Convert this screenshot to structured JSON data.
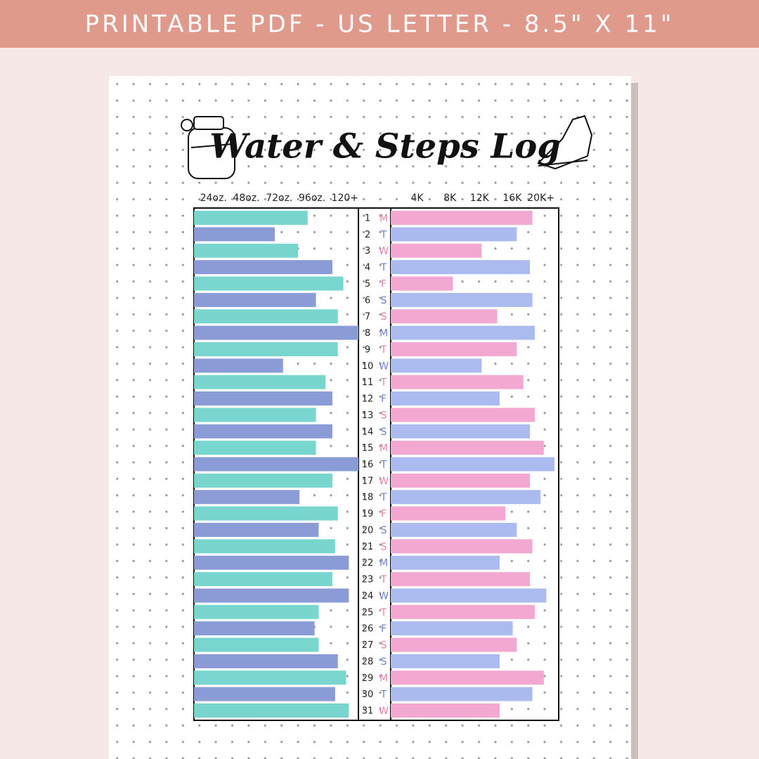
{
  "banner": "PRINTABLE PDF - US LETTER - 8.5\" X 11\"",
  "title": "Water & Steps Log",
  "chart_data": [
    {
      "type": "bar",
      "orientation": "horizontal",
      "categories": [
        "1",
        "2",
        "3",
        "4",
        "5",
        "6",
        "7",
        "8",
        "9",
        "10",
        "11",
        "12",
        "13",
        "14",
        "15",
        "16",
        "17",
        "18",
        "19",
        "20",
        "21",
        "22",
        "23",
        "24",
        "25",
        "26",
        "27",
        "28",
        "29",
        "30",
        "31"
      ],
      "weekdays": [
        "M",
        "T",
        "W",
        "T",
        "F",
        "S",
        "S",
        "M",
        "T",
        "W",
        "T",
        "F",
        "S",
        "S",
        "M",
        "T",
        "W",
        "T",
        "F",
        "S",
        "S",
        "M",
        "T",
        "W",
        "T",
        "F",
        "S",
        "S",
        "M",
        "T",
        "W"
      ],
      "weekday_colors": [
        "#e27fb4",
        "#6b7fc4"
      ],
      "values": [
        83,
        59,
        76,
        101,
        109,
        89,
        105,
        120,
        105,
        65,
        96,
        101,
        89,
        101,
        89,
        120,
        101,
        77,
        105,
        91,
        103,
        113,
        101,
        113,
        91,
        88,
        91,
        105,
        111,
        103,
        113
      ],
      "colors": [
        "#78d6cf",
        "#8a9bd6"
      ],
      "xlim": [
        0,
        120
      ],
      "xticks": [
        {
          "value": 24,
          "label": "24oz."
        },
        {
          "value": 48,
          "label": "48oz."
        },
        {
          "value": 72,
          "label": "72oz."
        },
        {
          "value": 96,
          "label": "96oz."
        },
        {
          "value": 120,
          "label": "120+"
        }
      ]
    },
    {
      "type": "bar",
      "orientation": "horizontal",
      "values": [
        17300,
        15400,
        11100,
        17000,
        7600,
        17300,
        13000,
        17600,
        15400,
        11100,
        16200,
        13300,
        17600,
        17000,
        18700,
        20000,
        17000,
        18300,
        14000,
        15400,
        17300,
        13300,
        17000,
        19000,
        17600,
        14900,
        15400,
        13300,
        18700,
        17300,
        13300
      ],
      "colors": [
        "#f2a8d0",
        "#abbbf0"
      ],
      "xlim": [
        0,
        20000
      ],
      "xticks": [
        {
          "value": 4000,
          "label": "4K"
        },
        {
          "value": 8000,
          "label": "8K"
        },
        {
          "value": 12000,
          "label": "12K"
        },
        {
          "value": 16000,
          "label": "16K"
        },
        {
          "value": 20000,
          "label": "20K+"
        }
      ]
    }
  ]
}
